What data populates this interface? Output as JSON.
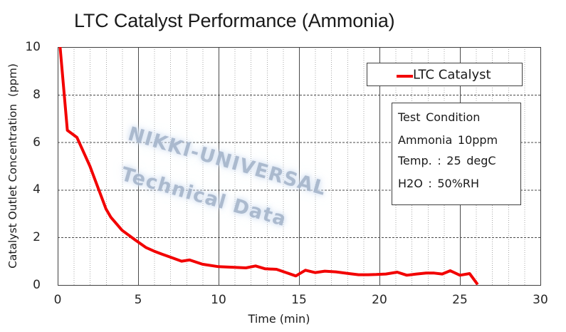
{
  "title": "LTC Catalyst Performance (Ammonia)",
  "watermark": {
    "line1": "NIKKI-UNIVERSAL",
    "line2": "Technical Data"
  },
  "legend": {
    "label": "LTC Catalyst"
  },
  "info_box": {
    "line1": "Test Condition",
    "line2": "Ammonia 10ppm",
    "line3": "Temp. : 25 degC",
    "line4": "H2O : 50%RH"
  },
  "colors": {
    "series": "#f20000",
    "grid_major": "#4a4a4a",
    "grid_minor": "#a8a8a8",
    "border": "#404040",
    "text": "#262626",
    "watermark": "#9daec4"
  },
  "chart_data": {
    "type": "line",
    "title": "LTC Catalyst Performance (Ammonia)",
    "xlabel": "Time (min)",
    "ylabel": "Catalyst Outlet Concentration  (ppm)",
    "xlim": [
      0,
      30
    ],
    "ylim": [
      0,
      10
    ],
    "x_major_ticks": [
      0,
      5,
      10,
      15,
      20,
      25,
      30
    ],
    "x_minor_step": 1,
    "y_ticks": [
      0,
      2,
      4,
      6,
      8,
      10
    ],
    "grid": {
      "h_major": "dashed",
      "v_major": "solid",
      "v_minor": "dotted"
    },
    "legend_position": "top-right-inside",
    "series": [
      {
        "name": "LTC Catalyst",
        "color": "#f20000",
        "points": [
          [
            0.15,
            10
          ],
          [
            0.6,
            6.5
          ],
          [
            1.2,
            6.2
          ],
          [
            2,
            5.0
          ],
          [
            3,
            3.2
          ],
          [
            3.3,
            2.85
          ],
          [
            4,
            2.3
          ],
          [
            4.8,
            1.9
          ],
          [
            5.5,
            1.57
          ],
          [
            6,
            1.42
          ],
          [
            6.5,
            1.29
          ],
          [
            7,
            1.17
          ],
          [
            7.7,
            1.0
          ],
          [
            8.2,
            1.05
          ],
          [
            9,
            0.87
          ],
          [
            10,
            0.77
          ],
          [
            11,
            0.74
          ],
          [
            11.7,
            0.72
          ],
          [
            12.3,
            0.8
          ],
          [
            12.9,
            0.68
          ],
          [
            13.6,
            0.66
          ],
          [
            14.2,
            0.52
          ],
          [
            14.8,
            0.38
          ],
          [
            15.4,
            0.62
          ],
          [
            16,
            0.52
          ],
          [
            16.6,
            0.58
          ],
          [
            17.3,
            0.55
          ],
          [
            18.1,
            0.48
          ],
          [
            18.7,
            0.43
          ],
          [
            19.3,
            0.43
          ],
          [
            19.8,
            0.44
          ],
          [
            20.4,
            0.46
          ],
          [
            21.1,
            0.54
          ],
          [
            21.7,
            0.41
          ],
          [
            22.3,
            0.46
          ],
          [
            22.9,
            0.5
          ],
          [
            23.4,
            0.5
          ],
          [
            23.9,
            0.46
          ],
          [
            24.4,
            0.6
          ],
          [
            25,
            0.41
          ],
          [
            25.6,
            0.48
          ],
          [
            26.1,
            0.02
          ]
        ]
      }
    ]
  }
}
